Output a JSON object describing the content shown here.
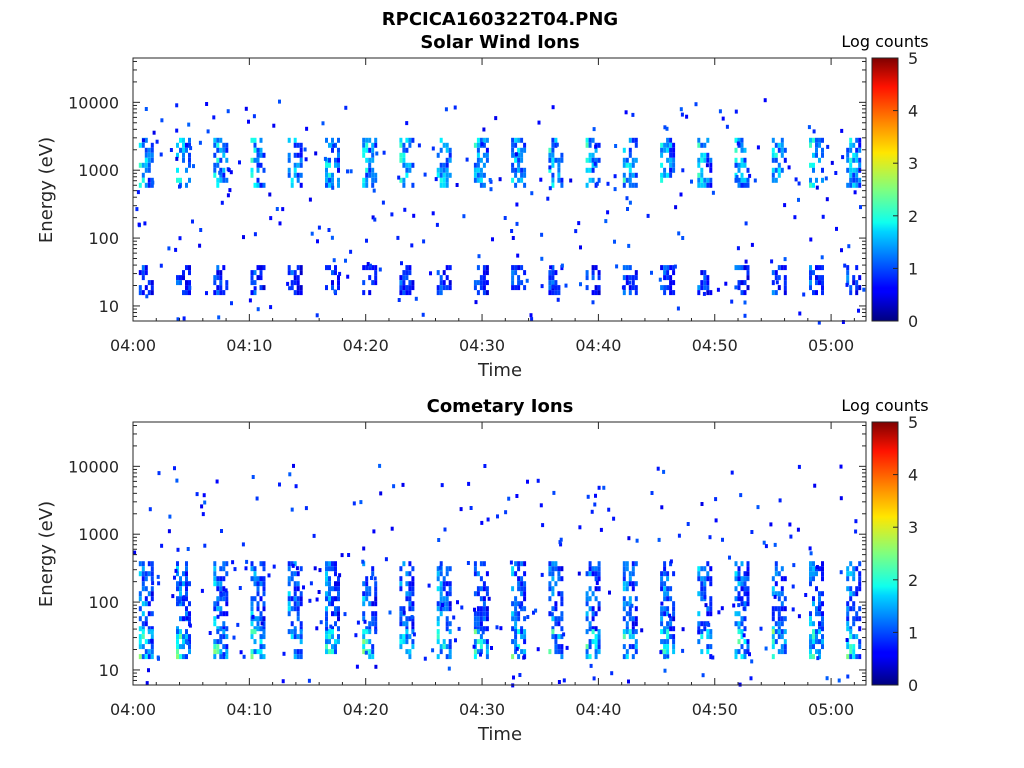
{
  "figure_title": "RPCICA160322T04.PNG",
  "chart_data": [
    {
      "type": "heatmap",
      "title": "Solar Wind Ions",
      "xlabel": "Time",
      "ylabel": "Energy (eV)",
      "x_ticks": [
        "04:00",
        "04:10",
        "04:20",
        "04:30",
        "04:40",
        "04:50",
        "05:00"
      ],
      "x_range_minutes": [
        0,
        63
      ],
      "y_scale": "log",
      "y_ticks": [
        10,
        100,
        1000,
        10000
      ],
      "y_tick_labels": [
        "10",
        "100",
        "1000",
        "10000"
      ],
      "y_range": [
        6,
        45000
      ],
      "colorbar": {
        "title": "Log counts",
        "range": [
          0,
          5
        ],
        "ticks": [
          "0",
          "1",
          "2",
          "3",
          "4",
          "5"
        ],
        "colormap": "jet"
      },
      "features": [
        {
          "kind": "periodic_bands",
          "period_minutes": 3.2,
          "start_minute": 0.5,
          "energy_low": 600,
          "energy_high": 3000,
          "peak_log_counts": 2.3
        },
        {
          "kind": "periodic_bands",
          "period_minutes": 3.2,
          "start_minute": 0.5,
          "energy_low": 15,
          "energy_high": 40,
          "peak_log_counts": 1.4
        }
      ]
    },
    {
      "type": "heatmap",
      "title": "Cometary Ions",
      "xlabel": "Time",
      "ylabel": "Energy (eV)",
      "x_ticks": [
        "04:00",
        "04:10",
        "04:20",
        "04:30",
        "04:40",
        "04:50",
        "05:00"
      ],
      "x_range_minutes": [
        0,
        63
      ],
      "y_scale": "log",
      "y_ticks": [
        10,
        100,
        1000,
        10000
      ],
      "y_tick_labels": [
        "10",
        "100",
        "1000",
        "10000"
      ],
      "y_range": [
        6,
        45000
      ],
      "colorbar": {
        "title": "Log counts",
        "range": [
          0,
          5
        ],
        "ticks": [
          "0",
          "1",
          "2",
          "3",
          "4",
          "5"
        ],
        "colormap": "jet"
      },
      "features": [
        {
          "kind": "periodic_bands",
          "period_minutes": 3.2,
          "start_minute": 0.5,
          "energy_low": 40,
          "energy_high": 400,
          "peak_log_counts": 1.8
        },
        {
          "kind": "periodic_bands",
          "period_minutes": 3.2,
          "start_minute": 0.5,
          "energy_low": 15,
          "energy_high": 40,
          "peak_log_counts": 2.6
        }
      ]
    }
  ]
}
